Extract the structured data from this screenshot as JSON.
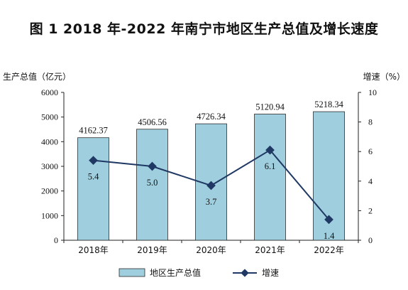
{
  "title": "图 1    2018 年-2022 年南宁市地区生产总值及增长速度",
  "chart_data": {
    "type": "bar",
    "categories": [
      "2018年",
      "2019年",
      "2020年",
      "2021年",
      "2022年"
    ],
    "series": [
      {
        "name": "地区生产总值",
        "type": "bar",
        "axis": "left",
        "values": [
          4162.37,
          4506.56,
          4726.34,
          5120.94,
          5218.34
        ],
        "labels": [
          "4162.37",
          "4506.56",
          "4726.34",
          "5120.94",
          "5218.34"
        ],
        "color": "#9fcfde"
      },
      {
        "name": "增速",
        "type": "line",
        "axis": "right",
        "values": [
          5.4,
          5.0,
          3.7,
          6.1,
          1.4
        ],
        "labels": [
          "5.4",
          "5.0",
          "3.7",
          "6.1",
          "1.4"
        ],
        "color": "#1f3864"
      }
    ],
    "ylabel_left": "生产总值（亿元）",
    "ylabel_right": "增速（%）",
    "ylim_left": [
      0,
      6000
    ],
    "ylim_right": [
      0,
      10
    ],
    "yticks_left": [
      "0",
      "1000",
      "2000",
      "3000",
      "4000",
      "5000",
      "6000"
    ],
    "yticks_right": [
      "0",
      "2",
      "4",
      "6",
      "8",
      "10"
    ],
    "grid": false,
    "legend_position": "bottom"
  }
}
